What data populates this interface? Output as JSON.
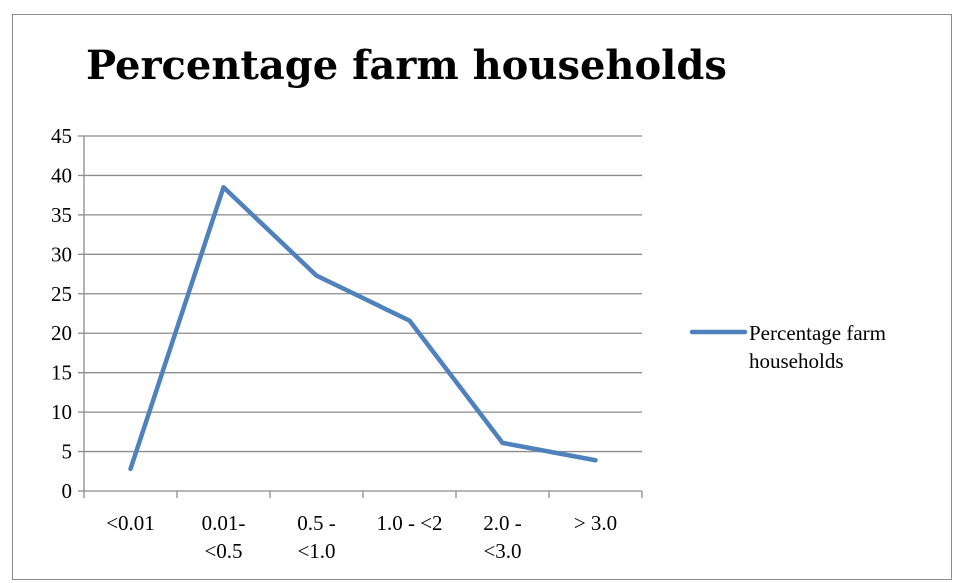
{
  "chart_data": {
    "type": "line",
    "title": "Percentage farm households",
    "categories": [
      "<0.01",
      "0.01-\n<0.5",
      "0.5 -\n<1.0",
      "1.0 - <2",
      "2.0 -\n<3.0",
      "> 3.0"
    ],
    "series": [
      {
        "name": "Percentage farm households",
        "values": [
          2.8,
          38.5,
          27.3,
          21.6,
          6.1,
          3.9
        ]
      }
    ],
    "ylim": [
      0,
      45
    ],
    "yticks": [
      0,
      5,
      10,
      15,
      20,
      25,
      30,
      35,
      40,
      45
    ],
    "grid": true,
    "legend": "right",
    "legend_lines": [
      "Percentage farm",
      "households"
    ],
    "colors": {
      "series": "#4f81bd",
      "grid": "#8c8c8c",
      "axis": "#8c8c8c"
    }
  }
}
